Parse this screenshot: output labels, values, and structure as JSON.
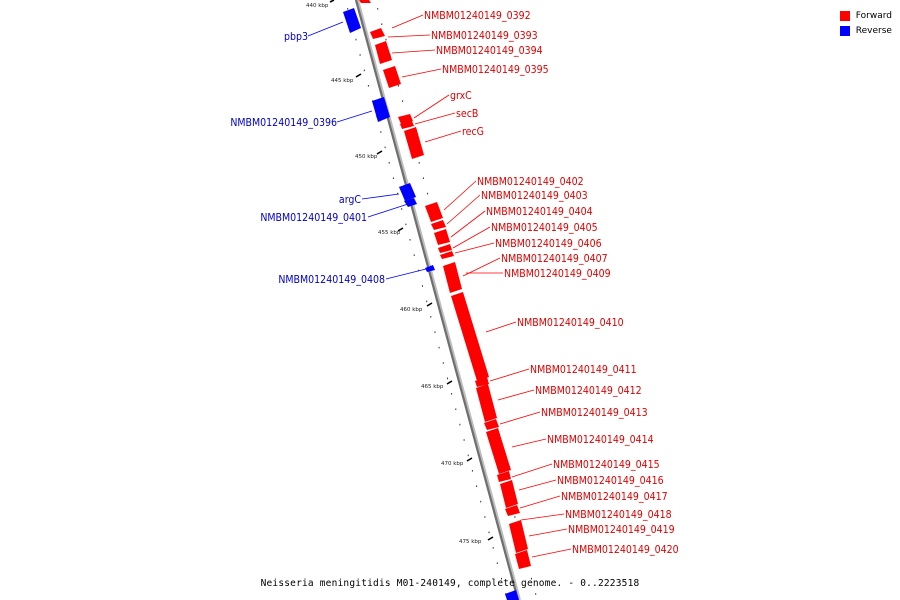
{
  "legend": {
    "forward_label": "Forward",
    "reverse_label": "Reverse",
    "forward_color": "#ff0000",
    "reverse_color": "#0000ff"
  },
  "caption": "Neisseria meningitidis M01-240149, complete genome. - 0..2223518",
  "ticks": [
    "440 kbp",
    "445 kbp",
    "450 kbp",
    "455 kbp",
    "460 kbp",
    "465 kbp",
    "470 kbp",
    "475 kbp"
  ],
  "genes": [
    {
      "name": "NMBM01240149_0392",
      "strand": "forward"
    },
    {
      "name": "NMBM01240149_0393",
      "strand": "forward"
    },
    {
      "name": "NMBM01240149_0394",
      "strand": "forward"
    },
    {
      "name": "NMBM01240149_0395",
      "strand": "forward"
    },
    {
      "name": "grxC",
      "strand": "forward"
    },
    {
      "name": "secB",
      "strand": "forward"
    },
    {
      "name": "recG",
      "strand": "forward"
    },
    {
      "name": "NMBM01240149_0402",
      "strand": "forward"
    },
    {
      "name": "NMBM01240149_0403",
      "strand": "forward"
    },
    {
      "name": "NMBM01240149_0404",
      "strand": "forward"
    },
    {
      "name": "NMBM01240149_0405",
      "strand": "forward"
    },
    {
      "name": "NMBM01240149_0406",
      "strand": "forward"
    },
    {
      "name": "NMBM01240149_0407",
      "strand": "forward"
    },
    {
      "name": "NMBM01240149_0409",
      "strand": "forward"
    },
    {
      "name": "NMBM01240149_0410",
      "strand": "forward"
    },
    {
      "name": "NMBM01240149_0411",
      "strand": "forward"
    },
    {
      "name": "NMBM01240149_0412",
      "strand": "forward"
    },
    {
      "name": "NMBM01240149_0413",
      "strand": "forward"
    },
    {
      "name": "NMBM01240149_0414",
      "strand": "forward"
    },
    {
      "name": "NMBM01240149_0415",
      "strand": "forward"
    },
    {
      "name": "NMBM01240149_0416",
      "strand": "forward"
    },
    {
      "name": "NMBM01240149_0417",
      "strand": "forward"
    },
    {
      "name": "NMBM01240149_0418",
      "strand": "forward"
    },
    {
      "name": "NMBM01240149_0419",
      "strand": "forward"
    },
    {
      "name": "NMBM01240149_0420",
      "strand": "forward"
    },
    {
      "name": "pbp3",
      "strand": "reverse"
    },
    {
      "name": "NMBM01240149_0396",
      "strand": "reverse"
    },
    {
      "name": "argC",
      "strand": "reverse"
    },
    {
      "name": "NMBM01240149_0401",
      "strand": "reverse"
    },
    {
      "name": "NMBM01240149_0408",
      "strand": "reverse"
    }
  ]
}
